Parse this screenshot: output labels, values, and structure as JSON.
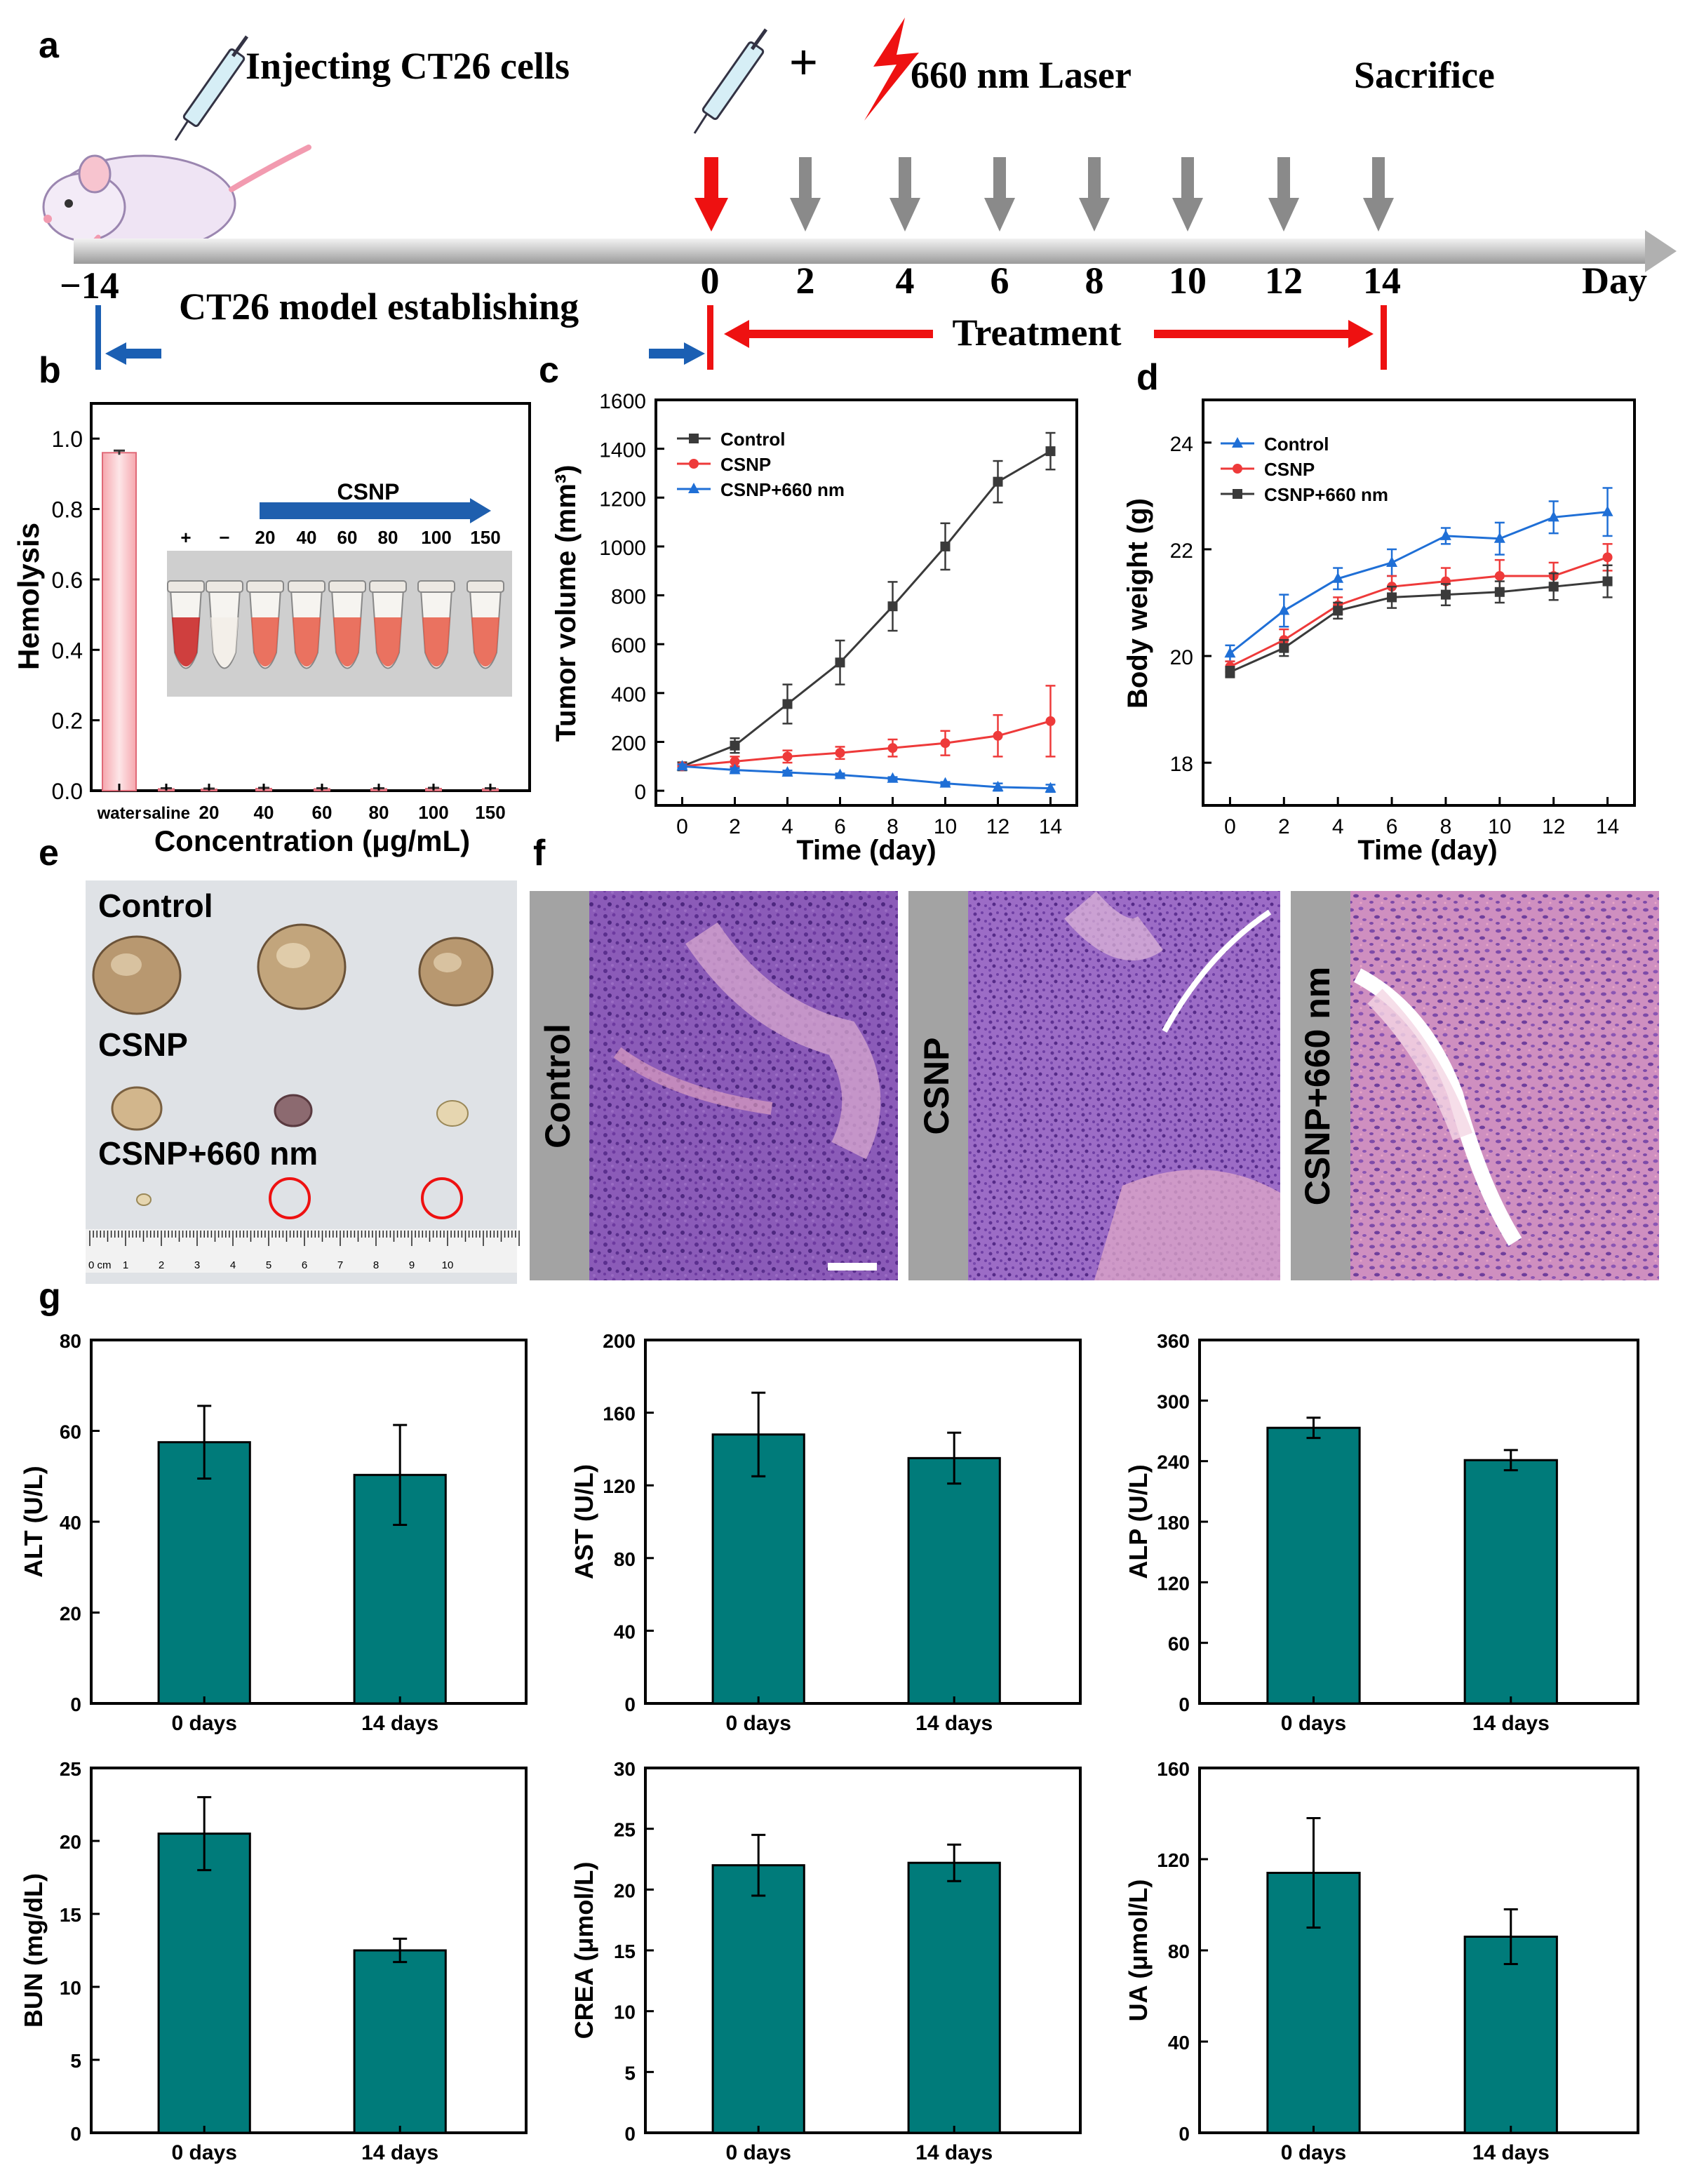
{
  "panel_labels": {
    "a": "a",
    "b": "b",
    "c": "c",
    "d": "d",
    "e": "e",
    "f": "f",
    "g": "g"
  },
  "timeline": {
    "inject_label": "Injecting CT26 cells",
    "plus": "+",
    "laser_label": "660 nm Laser",
    "sacrifice_label": "Sacrifice",
    "model_label": "CT26 model establishing",
    "treatment_label": "Treatment",
    "day_label": "Day",
    "start_tick": "−14",
    "ticks": [
      "0",
      "2",
      "4",
      "6",
      "8",
      "10",
      "12",
      "14"
    ]
  },
  "photo_e": {
    "control_label": "Control",
    "csnp_label": "CSNP",
    "csnp660_label": "CSNP+660 nm",
    "ruler_start": "0 cm",
    "ruler_numbers": [
      "1",
      "2",
      "3",
      "4",
      "5",
      "6",
      "7",
      "8",
      "9",
      "10"
    ]
  },
  "histology_f": {
    "labels": [
      "Control",
      "CSNP",
      "CSNP+660 nm"
    ]
  },
  "colors": {
    "teal": "#007b7a",
    "control": "#3a3a3a",
    "csnp": "#ee3a3a",
    "csnp660": "#1f6fd6",
    "pink": "#f4a0a8",
    "red": "#ee1111",
    "blue": "#1b5fb3"
  },
  "chart_data": [
    {
      "id": "b",
      "type": "bar",
      "categories": [
        "water",
        "saline",
        "20",
        "40",
        "60",
        "80",
        "100",
        "150"
      ],
      "values": [
        0.96,
        0.005,
        0.004,
        0.006,
        0.005,
        0.005,
        0.006,
        0.005
      ],
      "errors": [
        0.006,
        0.002,
        0.002,
        0.002,
        0.002,
        0.002,
        0.002,
        0.002
      ],
      "xlabel": "Concentration (μg/mL)",
      "ylabel": "Hemolysis",
      "ylim": [
        0,
        1.1
      ],
      "yticks": [
        "0.0",
        "0.2",
        "0.4",
        "0.6",
        "0.8",
        "1.0"
      ],
      "inset": {
        "title": "CSNP",
        "tube_labels": [
          "+",
          "−",
          "20",
          "40",
          "60",
          "80",
          "100",
          "150"
        ]
      }
    },
    {
      "id": "c",
      "type": "line",
      "x": [
        0,
        2,
        4,
        6,
        8,
        10,
        12,
        14
      ],
      "series": [
        {
          "name": "Control",
          "values": [
            100,
            185,
            355,
            525,
            755,
            1000,
            1265,
            1390
          ],
          "errors": [
            10,
            30,
            80,
            90,
            100,
            95,
            85,
            75
          ]
        },
        {
          "name": "CSNP",
          "values": [
            100,
            120,
            140,
            155,
            175,
            195,
            225,
            285
          ],
          "errors": [
            10,
            20,
            25,
            25,
            35,
            50,
            85,
            145
          ]
        },
        {
          "name": "CSNP+660 nm",
          "values": [
            100,
            85,
            75,
            65,
            50,
            30,
            15,
            10
          ],
          "errors": [
            8,
            8,
            8,
            6,
            6,
            6,
            15,
            15
          ]
        }
      ],
      "xlabel": "Time (day)",
      "ylabel": "Tumor volume (mm³)",
      "xlim": [
        -1,
        15
      ],
      "ylim": [
        -60,
        1600
      ],
      "yticks": [
        "0",
        "200",
        "400",
        "600",
        "800",
        "1000",
        "1200",
        "1400",
        "1600"
      ],
      "xticks": [
        "0",
        "2",
        "4",
        "6",
        "8",
        "10",
        "12",
        "14"
      ]
    },
    {
      "id": "d",
      "type": "line",
      "x": [
        0,
        2,
        4,
        6,
        8,
        10,
        12,
        14
      ],
      "series": [
        {
          "name": "Control",
          "values": [
            20.05,
            20.85,
            21.45,
            21.75,
            22.25,
            22.2,
            22.6,
            22.7
          ],
          "errors": [
            0.15,
            0.3,
            0.2,
            0.25,
            0.15,
            0.3,
            0.3,
            0.45
          ]
        },
        {
          "name": "CSNP",
          "values": [
            19.8,
            20.3,
            20.95,
            21.3,
            21.4,
            21.5,
            21.5,
            21.85
          ],
          "errors": [
            0.1,
            0.2,
            0.15,
            0.2,
            0.25,
            0.3,
            0.25,
            0.25
          ]
        },
        {
          "name": "CSNP+660 nm",
          "values": [
            19.7,
            20.15,
            20.85,
            21.1,
            21.15,
            21.2,
            21.3,
            21.4
          ],
          "errors": [
            0.1,
            0.15,
            0.15,
            0.2,
            0.2,
            0.2,
            0.25,
            0.3
          ]
        }
      ],
      "xlabel": "Time (day)",
      "ylabel": "Body weight (g)",
      "xlim": [
        -1,
        15
      ],
      "ylim": [
        17.2,
        24.8
      ],
      "yticks": [
        "18",
        "20",
        "22",
        "24"
      ],
      "xticks": [
        "0",
        "2",
        "4",
        "6",
        "8",
        "10",
        "12",
        "14"
      ]
    },
    {
      "id": "g1",
      "type": "bar",
      "categories": [
        "0 days",
        "14 days"
      ],
      "values": [
        57.5,
        50.3
      ],
      "errors": [
        8.0,
        11.0
      ],
      "ylabel": "ALT (U/L)",
      "ylim": [
        0,
        80
      ],
      "yticks": [
        "0",
        "20",
        "40",
        "60",
        "80"
      ]
    },
    {
      "id": "g2",
      "type": "bar",
      "categories": [
        "0 days",
        "14 days"
      ],
      "values": [
        148,
        135
      ],
      "errors": [
        23,
        14
      ],
      "ylabel": "AST (U/L)",
      "ylim": [
        0,
        200
      ],
      "yticks": [
        "0",
        "40",
        "80",
        "120",
        "160",
        "200"
      ]
    },
    {
      "id": "g3",
      "type": "bar",
      "categories": [
        "0 days",
        "14 days"
      ],
      "values": [
        273,
        241
      ],
      "errors": [
        10,
        10
      ],
      "ylabel": "ALP (U/L)",
      "ylim": [
        0,
        360
      ],
      "yticks": [
        "0",
        "60",
        "120",
        "180",
        "240",
        "300",
        "360"
      ]
    },
    {
      "id": "g4",
      "type": "bar",
      "categories": [
        "0 days",
        "14 days"
      ],
      "values": [
        20.5,
        12.5
      ],
      "errors": [
        2.5,
        0.8
      ],
      "ylabel": "BUN (mg/dL)",
      "ylim": [
        0,
        25
      ],
      "yticks": [
        "0",
        "5",
        "10",
        "15",
        "20",
        "25"
      ]
    },
    {
      "id": "g5",
      "type": "bar",
      "categories": [
        "0 days",
        "14 days"
      ],
      "values": [
        22.0,
        22.2
      ],
      "errors": [
        2.5,
        1.5
      ],
      "ylabel": "CREA (μmol/L)",
      "ylim": [
        0,
        30
      ],
      "yticks": [
        "0",
        "5",
        "10",
        "15",
        "20",
        "25",
        "30"
      ]
    },
    {
      "id": "g6",
      "type": "bar",
      "categories": [
        "0 days",
        "14 days"
      ],
      "values": [
        114,
        86
      ],
      "errors": [
        24,
        12
      ],
      "ylabel": "UA (μmol/L)",
      "ylim": [
        0,
        160
      ],
      "yticks": [
        "0",
        "40",
        "80",
        "120",
        "160"
      ]
    }
  ]
}
